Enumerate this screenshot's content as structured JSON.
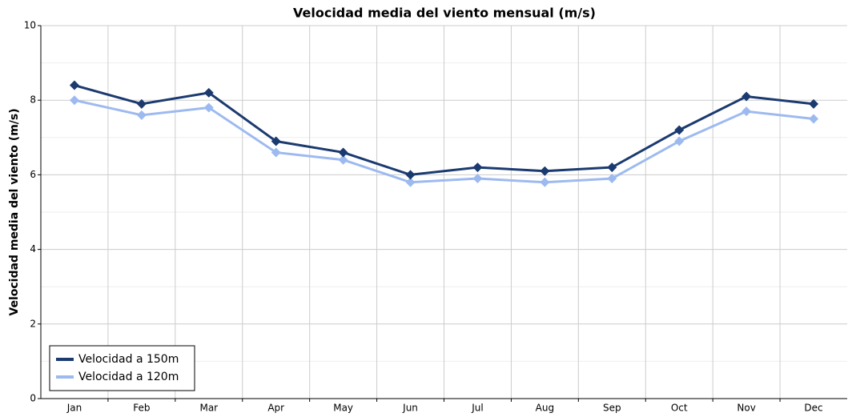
{
  "chart_data": {
    "type": "line",
    "title": "Velocidad media del viento mensual (m/s)",
    "y_label": "Velocidad media del viento (m/s)",
    "categories": [
      "Jan",
      "Feb",
      "Mar",
      "Apr",
      "May",
      "Jun",
      "Jul",
      "Aug",
      "Sep",
      "Oct",
      "Nov",
      "Dec"
    ],
    "series": [
      {
        "name": "Velocidad a 150m",
        "color": "#1b3a70",
        "values": [
          8.4,
          7.9,
          8.2,
          6.9,
          6.6,
          6.0,
          6.2,
          6.1,
          6.2,
          7.2,
          8.1,
          7.9
        ]
      },
      {
        "name": "Velocidad a 120m",
        "color": "#9dbaf0",
        "values": [
          8.0,
          7.6,
          7.8,
          6.6,
          6.4,
          5.8,
          5.9,
          5.8,
          5.9,
          6.9,
          7.7,
          7.5
        ]
      }
    ],
    "ylim": [
      0,
      10
    ],
    "yticks": [
      0,
      2,
      4,
      6,
      8,
      10
    ],
    "grid": true,
    "minor_grid": true,
    "legend": "lower left"
  }
}
